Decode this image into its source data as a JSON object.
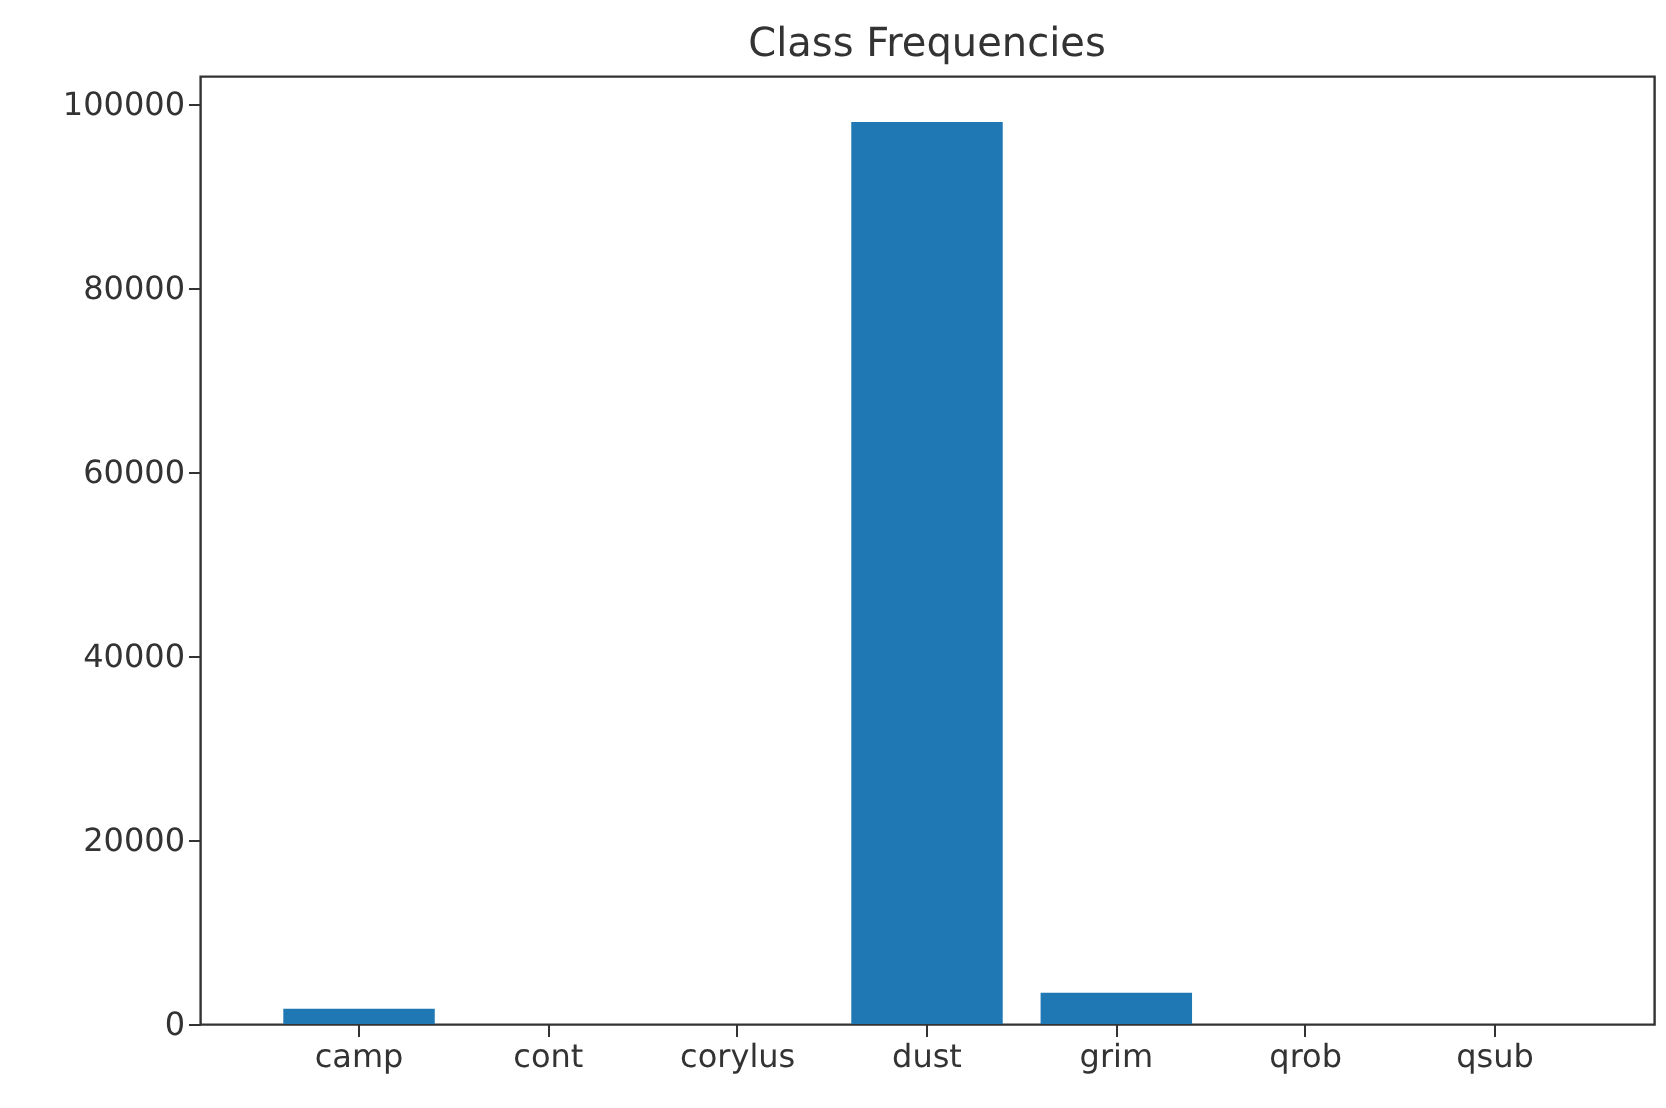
{
  "chart_data": {
    "type": "bar",
    "title": "Class Frequencies",
    "categories": [
      "camp",
      "cont",
      "corylus",
      "dust",
      "grim",
      "qrob",
      "qsub"
    ],
    "values": [
      1650,
      0,
      0,
      98000,
      3400,
      0,
      0
    ],
    "color": "#1f77b4",
    "ylim": [
      0,
      103000
    ],
    "yticks": [
      0,
      20000,
      40000,
      60000,
      80000,
      100000
    ],
    "grid": false
  }
}
